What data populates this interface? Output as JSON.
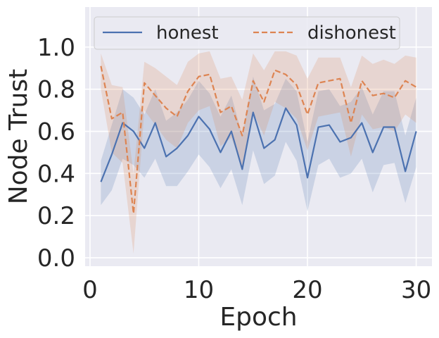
{
  "chart_data": {
    "type": "line",
    "title": "",
    "xlabel": "Epoch",
    "ylabel": "Node Trust",
    "xlim": [
      -0.45,
      31.45
    ],
    "ylim": [
      -0.04,
      1.19
    ],
    "xticks": [
      0,
      10,
      20,
      30
    ],
    "xtick_labels": [
      "0",
      "10",
      "20",
      "30"
    ],
    "yticks": [
      0.0,
      0.2,
      0.4,
      0.6,
      0.8,
      1.0
    ],
    "ytick_labels": [
      "0.0",
      "0.2",
      "0.4",
      "0.6",
      "0.8",
      "1.0"
    ],
    "grid": true,
    "legend_position": "top",
    "background": "#eaeaf2",
    "x": [
      1,
      2,
      3,
      4,
      5,
      6,
      7,
      8,
      9,
      10,
      11,
      12,
      13,
      14,
      15,
      16,
      17,
      18,
      19,
      20,
      21,
      22,
      23,
      24,
      25,
      26,
      27,
      28,
      29,
      30
    ],
    "series": [
      {
        "name": "honest",
        "color": "#4c72b0",
        "style": "solid",
        "values": [
          0.36,
          0.49,
          0.64,
          0.6,
          0.52,
          0.64,
          0.48,
          0.52,
          0.58,
          0.67,
          0.61,
          0.5,
          0.6,
          0.42,
          0.69,
          0.52,
          0.56,
          0.71,
          0.63,
          0.38,
          0.62,
          0.63,
          0.55,
          0.57,
          0.64,
          0.5,
          0.62,
          0.62,
          0.41,
          0.6
        ],
        "band_lower": [
          0.25,
          0.32,
          0.47,
          0.44,
          0.38,
          0.47,
          0.34,
          0.34,
          0.41,
          0.49,
          0.43,
          0.33,
          0.42,
          0.25,
          0.51,
          0.35,
          0.39,
          0.55,
          0.46,
          0.22,
          0.44,
          0.47,
          0.38,
          0.4,
          0.47,
          0.31,
          0.44,
          0.45,
          0.26,
          0.43
        ],
        "band_upper": [
          0.46,
          0.63,
          0.8,
          0.76,
          0.68,
          0.8,
          0.65,
          0.69,
          0.75,
          0.84,
          0.78,
          0.67,
          0.77,
          0.58,
          0.86,
          0.7,
          0.73,
          0.85,
          0.79,
          0.55,
          0.79,
          0.8,
          0.72,
          0.74,
          0.81,
          0.68,
          0.79,
          0.79,
          0.58,
          0.76
        ]
      },
      {
        "name": "dishonest",
        "color": "#dd8452",
        "style": "dashed",
        "values": [
          0.91,
          0.66,
          0.69,
          0.21,
          0.83,
          0.77,
          0.71,
          0.67,
          0.79,
          0.86,
          0.87,
          0.69,
          0.72,
          0.58,
          0.84,
          0.74,
          0.89,
          0.87,
          0.82,
          0.68,
          0.83,
          0.84,
          0.85,
          0.64,
          0.84,
          0.77,
          0.78,
          0.76,
          0.84,
          0.81
        ],
        "band_lower": [
          0.8,
          0.5,
          0.45,
          0.02,
          0.7,
          0.63,
          0.56,
          0.52,
          0.64,
          0.7,
          0.72,
          0.53,
          0.57,
          0.43,
          0.69,
          0.58,
          0.74,
          0.71,
          0.66,
          0.51,
          0.67,
          0.68,
          0.69,
          0.48,
          0.68,
          0.61,
          0.62,
          0.6,
          0.68,
          0.64
        ],
        "band_upper": [
          0.97,
          0.82,
          0.81,
          0.4,
          0.93,
          0.9,
          0.86,
          0.82,
          0.93,
          0.97,
          0.98,
          0.85,
          0.86,
          0.75,
          0.97,
          0.89,
          0.98,
          0.98,
          0.96,
          0.85,
          0.95,
          0.95,
          0.95,
          0.81,
          0.96,
          0.92,
          0.94,
          0.92,
          0.96,
          0.95
        ]
      }
    ]
  }
}
